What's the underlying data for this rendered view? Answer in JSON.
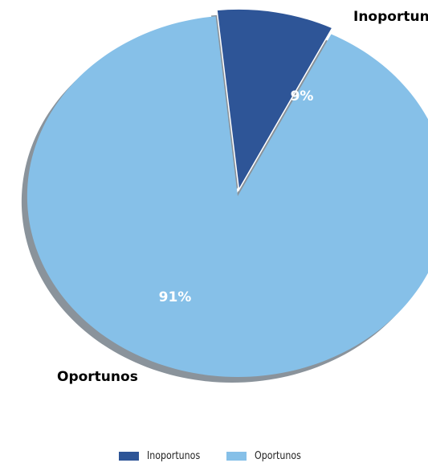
{
  "chart_data": {
    "type": "pie",
    "slices": [
      {
        "label": "Inoportunos",
        "value": 9,
        "percent_label": "9%",
        "color": "#2E5597",
        "exploded": true
      },
      {
        "label": "Oportunos",
        "value": 91,
        "percent_label": "91%",
        "color": "#86C0E8",
        "exploded": false
      }
    ],
    "legend": {
      "placement": "bottom",
      "entries": [
        {
          "label": "Inoportunos",
          "color": "#2E5597"
        },
        {
          "label": "Oportunos",
          "color": "#86C0E8"
        }
      ]
    },
    "shadow_color": "#8A939B"
  }
}
